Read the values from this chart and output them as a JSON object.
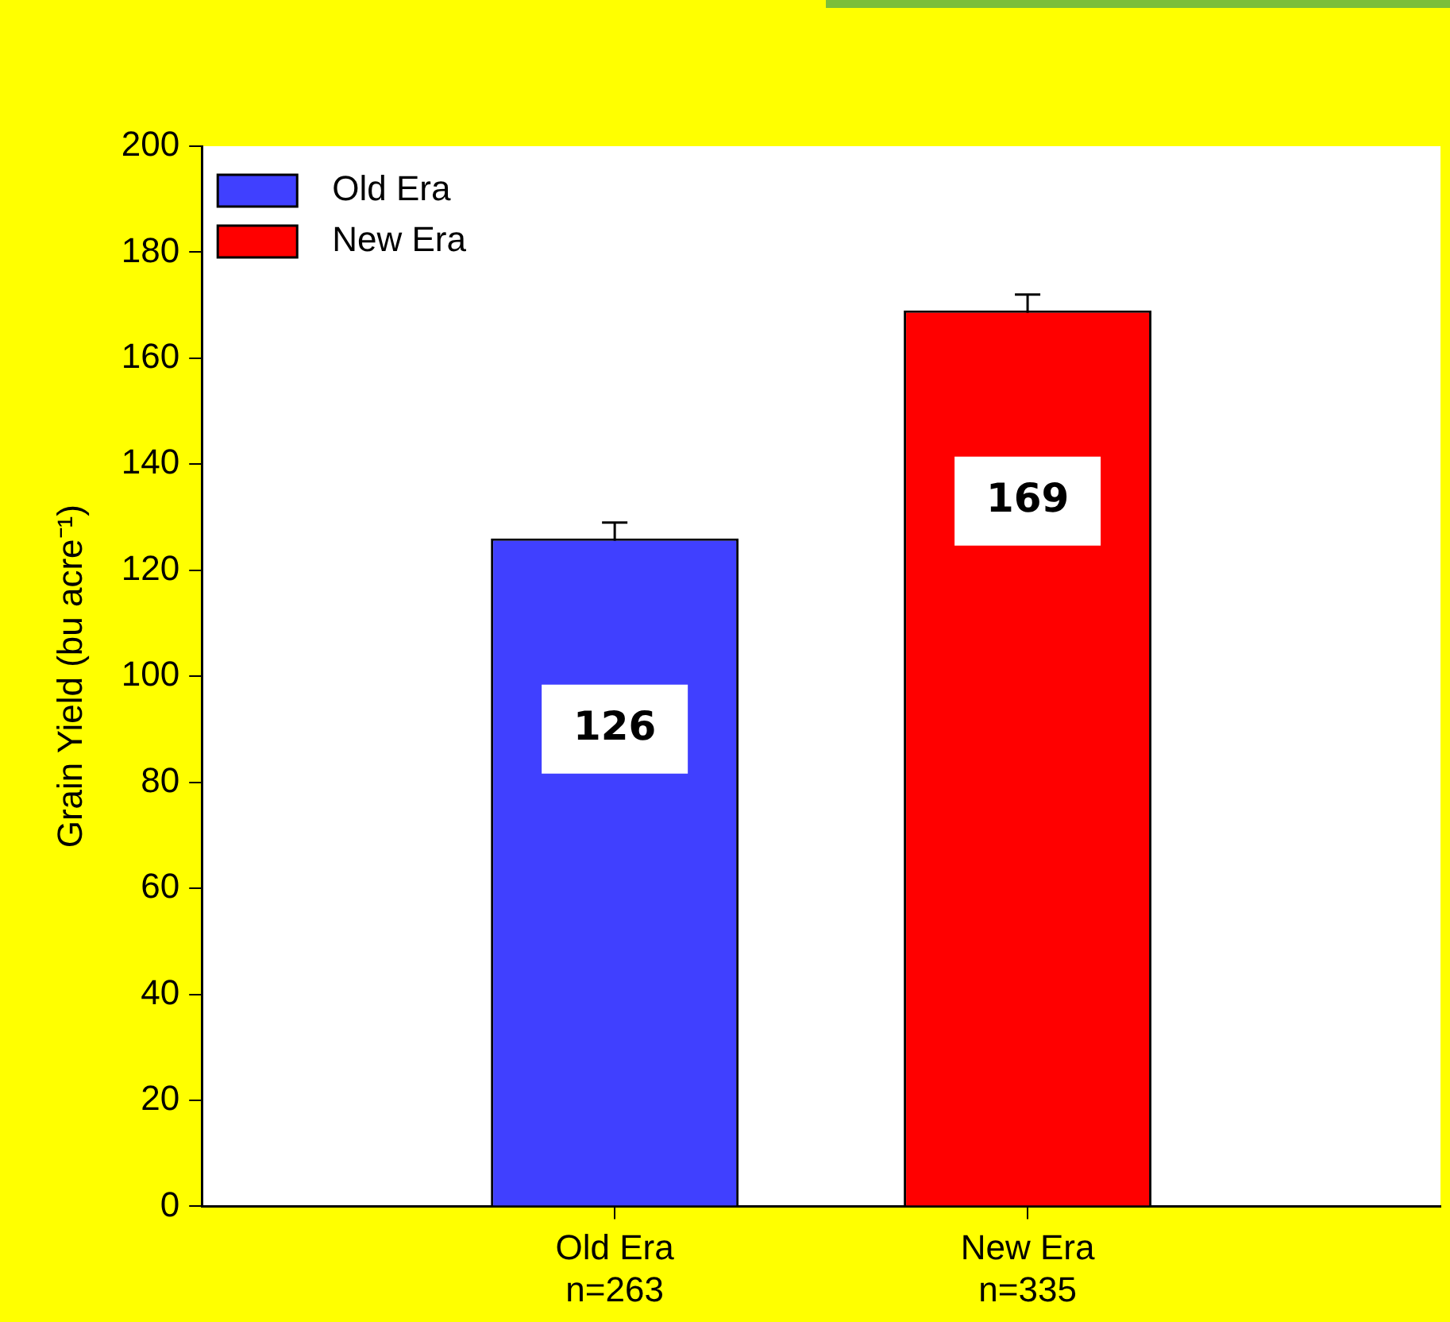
{
  "chart_data": {
    "type": "bar",
    "ylabel": "Grain Yield (bu acre⁻¹)",
    "categories": [
      "Old Era\nn=263",
      "New Era\nn=335"
    ],
    "series": [
      {
        "name": "Old Era",
        "color": "#4040ff",
        "values": [
          126,
          null
        ],
        "errors": [
          3,
          null
        ]
      },
      {
        "name": "New Era",
        "color": "#ff0000",
        "values": [
          null,
          169
        ],
        "errors": [
          null,
          3
        ]
      }
    ],
    "ylim": [
      0,
      200
    ],
    "yticks": [
      0,
      20,
      40,
      60,
      80,
      100,
      120,
      140,
      160,
      180,
      200
    ],
    "grid": false,
    "legend": "top left",
    "data_labels": true
  }
}
